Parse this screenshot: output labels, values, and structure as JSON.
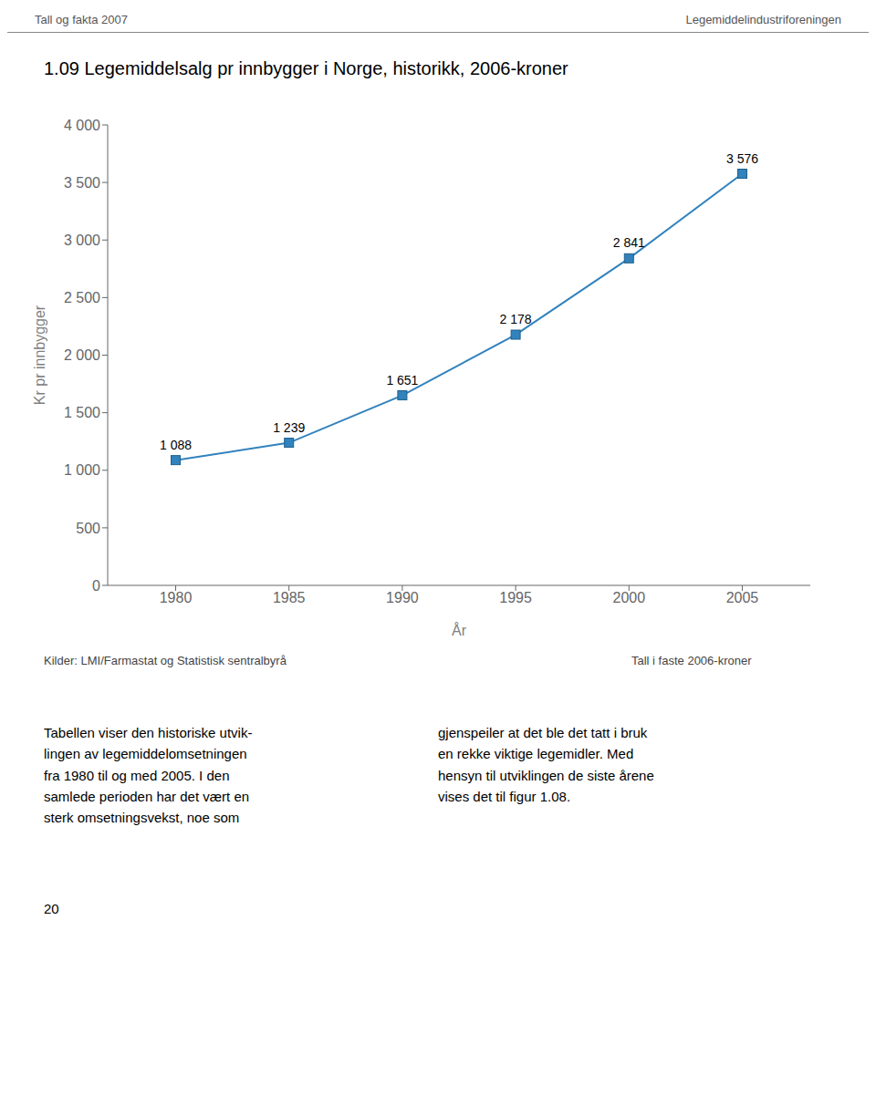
{
  "chart_data": {
    "type": "line",
    "title": "1.09 Legemiddelsalg pr innbygger i Norge, historikk, 2006-kroner",
    "xlabel": "År",
    "ylabel": "Kr pr innbygger",
    "x": [
      1980,
      1985,
      1990,
      1995,
      2000,
      2005
    ],
    "values": [
      1088,
      1239,
      1651,
      2178,
      2841,
      3576
    ],
    "value_labels": [
      "1 088",
      "1 239",
      "1 651",
      "2 178",
      "2 841",
      "3 576"
    ],
    "data_labels": true,
    "marker": "square",
    "grid": false,
    "xlim": [
      1977,
      2008
    ],
    "xticks": [
      1980,
      1985,
      1990,
      1995,
      2000,
      2005
    ],
    "ylim": [
      0,
      4000
    ],
    "yticks": [
      0,
      500,
      {
        "value": 1000,
        "label": "1 000"
      },
      {
        "value": 1500,
        "label": "1 500"
      },
      {
        "value": 2000,
        "label": "2 000"
      },
      {
        "value": 2500,
        "label": "2 500"
      },
      {
        "value": 3000,
        "label": "3 000"
      },
      {
        "value": 3500,
        "label": "3 500"
      },
      {
        "value": 4000,
        "label": "4 000"
      }
    ],
    "annotations": [
      "Tall og fakta 2007",
      "Legemiddelindustriforeningen",
      "Kilder: LMI/Farmastat og Statistisk sentralbyrå",
      "Tall i faste 2006-kroner",
      "Tabellen viser den historiske utvik-\nlingen av legemiddelomsetningen\nfra 1980 til og med 2005. I den\nsamlede perioden har det vært en\nsterk omsetningsvekst, noe som",
      "gjenspeiler at det ble det tatt i bruk\nen rekke viktige legemidler. Med\nhensyn til utviklingen de siste årene\nvises det til figur 1.08.",
      "20"
    ]
  }
}
